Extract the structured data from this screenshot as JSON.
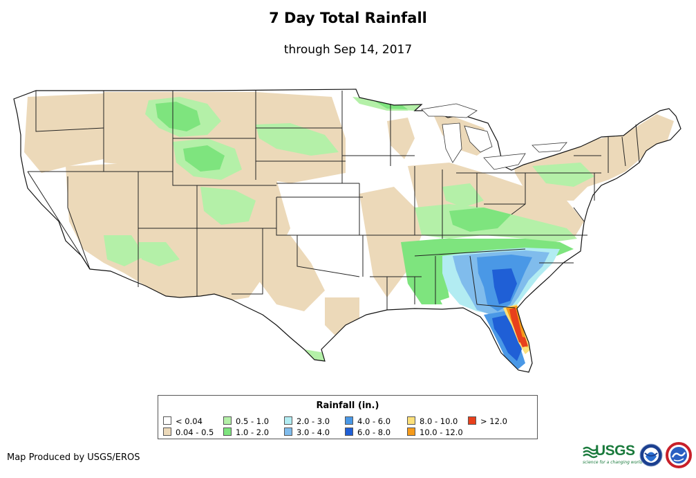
{
  "map": {
    "title": "7 Day Total Rainfall",
    "subtitle": "through Sep 14, 2017",
    "region": "Contiguous United States",
    "credit": "Map Produced by USGS/EROS"
  },
  "legend": {
    "title": "Rainfall (in.)",
    "items": [
      {
        "label": "< 0.04",
        "color": "#ffffff"
      },
      {
        "label": "0.04 - 0.5",
        "color": "#ecd9b9"
      },
      {
        "label": "0.5 - 1.0",
        "color": "#b4f0a8"
      },
      {
        "label": "1.0 - 2.0",
        "color": "#7ee47e"
      },
      {
        "label": "2.0 - 3.0",
        "color": "#b2ecf2"
      },
      {
        "label": "3.0 - 4.0",
        "color": "#80bcec"
      },
      {
        "label": "4.0 - 6.0",
        "color": "#4a98e6"
      },
      {
        "label": "6.0 - 8.0",
        "color": "#1f5fd6"
      },
      {
        "label": "8.0 - 10.0",
        "color": "#fce07a"
      },
      {
        "label": "10.0 - 12.0",
        "color": "#f59a1a"
      },
      {
        "label": "> 12.0",
        "color": "#e8401c"
      }
    ]
  },
  "logos": {
    "usgs": {
      "text": "USGS",
      "tagline": "science for a changing world",
      "color": "#1a7a3c"
    },
    "noaa": {
      "text": "NOAA"
    },
    "nws": {
      "text": "NWS"
    }
  }
}
